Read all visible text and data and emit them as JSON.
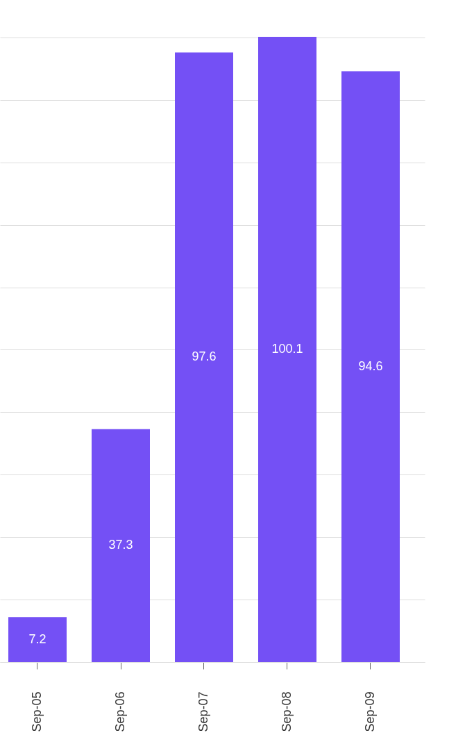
{
  "chart_data": {
    "type": "bar",
    "categories": [
      "Sep-05",
      "Sep-06",
      "Sep-07",
      "Sep-08",
      "Sep-09"
    ],
    "values": [
      7.2,
      37.3,
      97.6,
      100.1,
      94.6
    ],
    "color": "#7450f5",
    "ylim": [
      0,
      100.1
    ],
    "yticks": [
      {
        "value": 0,
        "label": null
      },
      {
        "value": 10,
        "label": null
      },
      {
        "value": 20,
        "label": null
      },
      {
        "value": 30,
        "label": null
      },
      {
        "value": 40,
        "label": null
      },
      {
        "value": 50,
        "label": null
      },
      {
        "value": 60,
        "label": null
      },
      {
        "value": 70,
        "label": null
      },
      {
        "value": 80,
        "label": null
      },
      {
        "value": 90,
        "label": null
      },
      {
        "value": 100,
        "label": null
      }
    ],
    "tick_labels": "x",
    "grid": "y",
    "data_labels": true
  }
}
